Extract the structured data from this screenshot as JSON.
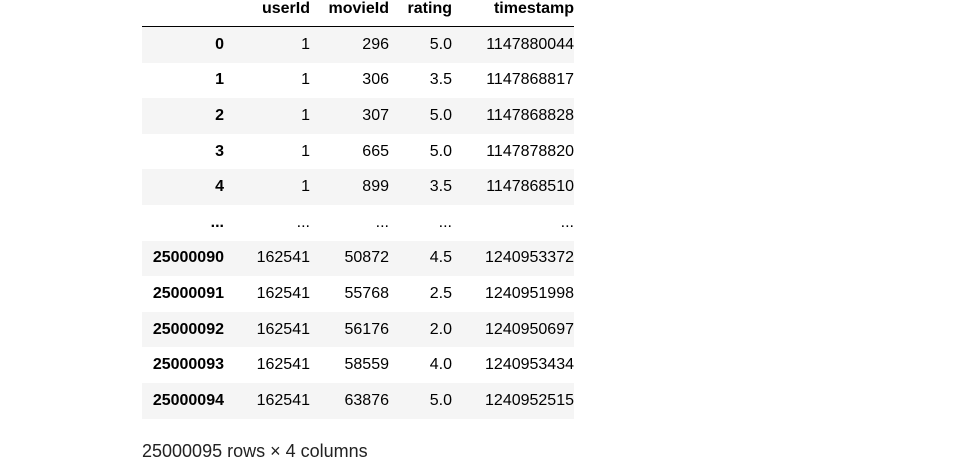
{
  "table": {
    "columns": [
      "userId",
      "movieId",
      "rating",
      "timestamp"
    ],
    "rows": [
      {
        "index": "0",
        "userId": "1",
        "movieId": "296",
        "rating": "5.0",
        "timestamp": "1147880044"
      },
      {
        "index": "1",
        "userId": "1",
        "movieId": "306",
        "rating": "3.5",
        "timestamp": "1147868817"
      },
      {
        "index": "2",
        "userId": "1",
        "movieId": "307",
        "rating": "5.0",
        "timestamp": "1147868828"
      },
      {
        "index": "3",
        "userId": "1",
        "movieId": "665",
        "rating": "5.0",
        "timestamp": "1147878820"
      },
      {
        "index": "4",
        "userId": "1",
        "movieId": "899",
        "rating": "3.5",
        "timestamp": "1147868510"
      },
      {
        "index": "...",
        "userId": "...",
        "movieId": "...",
        "rating": "...",
        "timestamp": "..."
      },
      {
        "index": "25000090",
        "userId": "162541",
        "movieId": "50872",
        "rating": "4.5",
        "timestamp": "1240953372"
      },
      {
        "index": "25000091",
        "userId": "162541",
        "movieId": "55768",
        "rating": "2.5",
        "timestamp": "1240951998"
      },
      {
        "index": "25000092",
        "userId": "162541",
        "movieId": "56176",
        "rating": "2.0",
        "timestamp": "1240950697"
      },
      {
        "index": "25000093",
        "userId": "162541",
        "movieId": "58559",
        "rating": "4.0",
        "timestamp": "1240953434"
      },
      {
        "index": "25000094",
        "userId": "162541",
        "movieId": "63876",
        "rating": "5.0",
        "timestamp": "1240952515"
      }
    ]
  },
  "summary": "25000095 rows × 4 columns"
}
